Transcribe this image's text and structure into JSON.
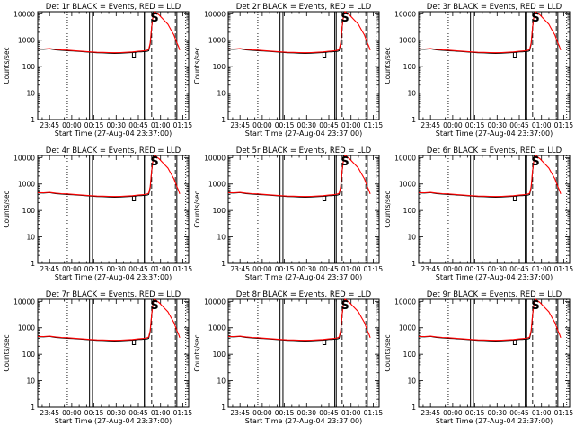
{
  "figure": {
    "x_axis_label": "Start Time (27-Aug-04 23:37:00)",
    "y_axis_label": "Counts/sec",
    "colors": {
      "events": "#000000",
      "lld": "#ff0000",
      "background": "#ffffff"
    }
  },
  "chart_data": {
    "type": "line",
    "layout": "3x3 grid",
    "x": {
      "unit": "minutes after 27-Aug-04 23:37:00",
      "range": [
        0,
        102
      ],
      "ticks": [
        {
          "value": 8,
          "label": "23:45"
        },
        {
          "value": 23,
          "label": "00:00"
        },
        {
          "value": 38,
          "label": "00:15"
        },
        {
          "value": 53,
          "label": "00:30"
        },
        {
          "value": 68,
          "label": "00:45"
        },
        {
          "value": 83,
          "label": "01:00"
        },
        {
          "value": 98,
          "label": "01:15"
        }
      ]
    },
    "y": {
      "scale": "log",
      "range": [
        1,
        12000
      ],
      "ticks": [
        {
          "value": 1,
          "label": "1"
        },
        {
          "value": 10,
          "label": "10"
        },
        {
          "value": 100,
          "label": "100"
        },
        {
          "value": 1000,
          "label": "1000"
        },
        {
          "value": 10000,
          "label": "10000"
        }
      ]
    },
    "markers": {
      "dotted": [
        20,
        100
      ],
      "solid": [
        35,
        37,
        72,
        73,
        94
      ],
      "dashed": [
        77,
        93
      ],
      "letter_label": "S",
      "letter_at": 79
    },
    "panels": [
      {
        "title": "Det 1r  BLACK = Events, RED = LLD",
        "xtick_variant": "a"
      },
      {
        "title": "Det 2r  BLACK = Events, RED = LLD",
        "xtick_variant": "b"
      },
      {
        "title": "Det 3r  BLACK = Events, RED = LLD",
        "xtick_variant": "b"
      },
      {
        "title": "Det 4r  BLACK = Events, RED = LLD",
        "xtick_variant": "a"
      },
      {
        "title": "Det 5r  BLACK = Events, RED = LLD",
        "xtick_variant": "b"
      },
      {
        "title": "Det 6r  BLACK = Events, RED = LLD",
        "xtick_variant": "b"
      },
      {
        "title": "Det 7r  BLACK = Events, RED = LLD",
        "xtick_variant": "a"
      },
      {
        "title": "Det 8r  BLACK = Events, RED = LLD",
        "xtick_variant": "b"
      },
      {
        "title": "Det 9r  BLACK = Events, RED = LLD",
        "xtick_variant": "b"
      }
    ],
    "xtick_labels_variant_a": [
      "23:45",
      "00:00",
      "00:15",
      "00:30",
      "00:45",
      "01:00",
      "01:15"
    ],
    "series": [
      {
        "name": "Events",
        "color": "#000000",
        "points": [
          [
            0,
            460
          ],
          [
            4,
            450
          ],
          [
            8,
            470
          ],
          [
            12,
            430
          ],
          [
            16,
            415
          ],
          [
            20,
            400
          ],
          [
            24,
            390
          ],
          [
            28,
            375
          ],
          [
            32,
            360
          ],
          [
            36,
            345
          ],
          [
            40,
            335
          ],
          [
            44,
            330
          ],
          [
            48,
            320
          ],
          [
            52,
            315
          ],
          [
            56,
            320
          ],
          [
            60,
            330
          ],
          [
            64,
            340
          ],
          [
            66,
            350
          ],
          [
            68,
            360
          ],
          [
            70,
            360
          ],
          [
            72,
            370
          ],
          [
            74,
            380
          ],
          [
            75,
            400
          ],
          [
            76,
            700
          ],
          [
            77,
            3000
          ],
          [
            78,
            9000
          ],
          [
            79,
            11000
          ]
        ],
        "dip": {
          "start": 64,
          "end": 66,
          "value": 230
        }
      },
      {
        "name": "LLD",
        "color": "#ff0000",
        "points": [
          [
            0,
            470
          ],
          [
            4,
            465
          ],
          [
            8,
            480
          ],
          [
            12,
            450
          ],
          [
            16,
            430
          ],
          [
            20,
            420
          ],
          [
            24,
            405
          ],
          [
            28,
            390
          ],
          [
            32,
            375
          ],
          [
            36,
            360
          ],
          [
            40,
            350
          ],
          [
            44,
            345
          ],
          [
            48,
            340
          ],
          [
            52,
            335
          ],
          [
            56,
            340
          ],
          [
            60,
            350
          ],
          [
            64,
            360
          ],
          [
            66,
            370
          ],
          [
            68,
            380
          ],
          [
            70,
            390
          ],
          [
            72,
            400
          ],
          [
            74,
            420
          ],
          [
            75,
            450
          ],
          [
            76,
            800
          ],
          [
            77,
            3200
          ],
          [
            78,
            9500
          ],
          [
            79,
            12000
          ],
          [
            82,
            9000
          ],
          [
            85,
            6000
          ],
          [
            88,
            4000
          ],
          [
            90,
            2500
          ],
          [
            92,
            1600
          ],
          [
            94,
            800
          ],
          [
            95,
            600
          ],
          [
            96,
            420
          ]
        ]
      }
    ]
  }
}
